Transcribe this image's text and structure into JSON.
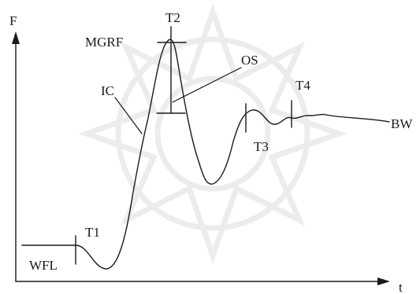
{
  "axes": {
    "y_label": "F",
    "x_label": "t"
  },
  "labels": {
    "wfl": "WFL",
    "t1": "T1",
    "ic": "IC",
    "mgrf": "MGRF",
    "t2": "T2",
    "os": "OS",
    "t3": "T3",
    "t4": "T4",
    "bw": "BW"
  },
  "colors": {
    "ink": "#1a1a1a",
    "watermark": "#ececec"
  }
}
